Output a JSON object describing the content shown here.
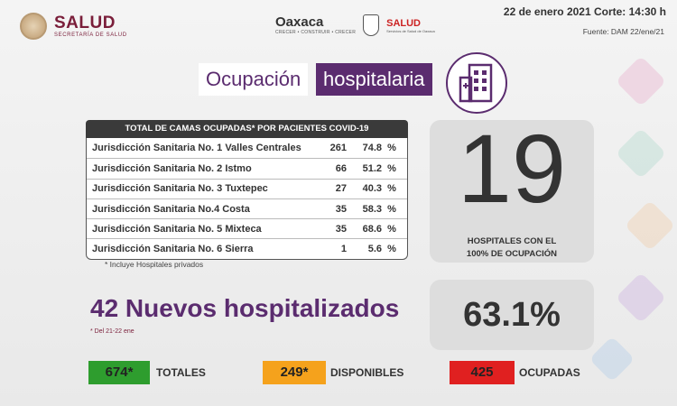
{
  "header": {
    "salud_title": "SALUD",
    "salud_subtitle": "SECRETARÍA DE SALUD",
    "oaxaca_text": "Oaxaca",
    "oaxaca_sub": "CRECER • CONSTRUIR • CRECER",
    "salud2_title": "SALUD",
    "salud2_sub": "Servicios de Salud de Oaxaca",
    "date": "22 de enero 2021 Corte: 14:30 h",
    "source": "Fuente: DAM 22/ene/21"
  },
  "title": {
    "part1": "Ocupación",
    "part2": "hospitalaria"
  },
  "table": {
    "header": "TOTAL DE CAMAS OCUPADAS* POR PACIENTES COVID-19",
    "rows": [
      {
        "name": "Jurisdicción Sanitaria No. 1 Valles Centrales",
        "beds": "261",
        "pct": "74.8",
        "sym": "%"
      },
      {
        "name": "Jurisdicción Sanitaria No. 2 Istmo",
        "beds": "66",
        "pct": "51.2",
        "sym": "%"
      },
      {
        "name": "Jurisdicción Sanitaria No. 3 Tuxtepec",
        "beds": "27",
        "pct": "40.3",
        "sym": "%"
      },
      {
        "name": "Jurisdicción Sanitaria No.4 Costa",
        "beds": "35",
        "pct": "58.3",
        "sym": "%"
      },
      {
        "name": "Jurisdicción Sanitaria No. 5 Mixteca",
        "beds": "35",
        "pct": "68.6",
        "sym": "%"
      },
      {
        "name": "Jurisdicción Sanitaria No. 6 Sierra",
        "beds": "1",
        "pct": "5.6",
        "sym": "%"
      }
    ],
    "note": "* Incluye Hospitales privados"
  },
  "hospitals": {
    "count": "19",
    "caption_line1": "HOSPITALES CON EL",
    "caption_line2": "100% DE OCUPACIÓN"
  },
  "new_hosp": {
    "text": "42 Nuevos hospitalizados",
    "note": "* Del 21-22 ene"
  },
  "occupancy_pct": "63.1%",
  "stats": {
    "totales_value": "674*",
    "totales_label": "TOTALES",
    "disponibles_value": "249*",
    "disponibles_label": "DISPONIBLES",
    "ocupadas_value": "425",
    "ocupadas_label": "OCUPADAS"
  },
  "colors": {
    "accent_purple": "#5b2c6f",
    "green": "#2e9d2e",
    "orange": "#f5a21c",
    "red": "#e02020"
  },
  "icons": {
    "title_icon": "hospital-building-icon",
    "seal_icon": "mexico-seal-icon",
    "crest_icon": "oaxaca-crest-icon"
  }
}
